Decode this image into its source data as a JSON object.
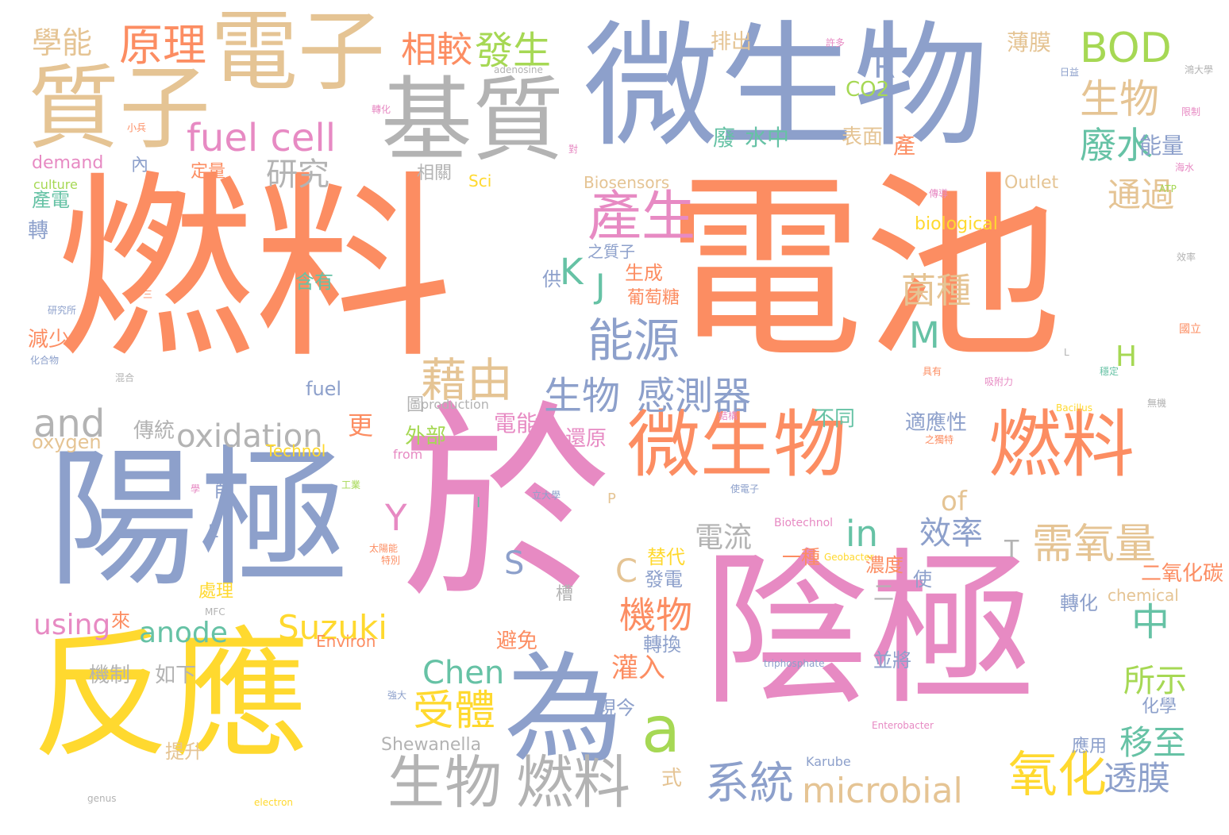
{
  "words": [
    {
      "text": "燃料",
      "color": "#fc8d62"
    },
    {
      "text": "電池",
      "color": "#fc8d62"
    },
    {
      "text": "微生物",
      "color": "#8da0cb"
    },
    {
      "text": "於",
      "color": "#e78ac3"
    },
    {
      "text": "陰極",
      "color": "#e78ac3"
    },
    {
      "text": "陽極",
      "color": "#8da0cb"
    },
    {
      "text": "反應",
      "color": "#ffd92f"
    },
    {
      "text": "電子",
      "color": "#e5c494"
    },
    {
      "text": "質子",
      "color": "#e5c494"
    },
    {
      "text": "基質",
      "color": "#b3b3b3"
    },
    {
      "text": "微生物",
      "color": "#fc8d62"
    },
    {
      "text": "燃料",
      "color": "#fc8d62"
    },
    {
      "text": "為",
      "color": "#8da0cb"
    },
    {
      "text": "生物",
      "color": "#b3b3b3"
    },
    {
      "text": "燃料",
      "color": "#b3b3b3"
    },
    {
      "text": "fuel cell",
      "color": "#e78ac3"
    },
    {
      "text": "產生",
      "color": "#e78ac3"
    },
    {
      "text": "BOD",
      "color": "#a6d854"
    },
    {
      "text": "需氧量",
      "color": "#e5c494"
    },
    {
      "text": "microbial",
      "color": "#e5c494"
    },
    {
      "text": "a",
      "color": "#a6d854"
    },
    {
      "text": "and",
      "color": "#b3b3b3"
    },
    {
      "text": "oxidation",
      "color": "#b3b3b3"
    },
    {
      "text": "能源",
      "color": "#8da0cb"
    },
    {
      "text": "藉由",
      "color": "#e5c494"
    },
    {
      "text": "生物",
      "color": "#8da0cb"
    },
    {
      "text": "感測器",
      "color": "#8da0cb"
    },
    {
      "text": "原理",
      "color": "#fc8d62"
    },
    {
      "text": "學能",
      "color": "#e5c494"
    },
    {
      "text": "相較",
      "color": "#fc8d62"
    },
    {
      "text": "發生",
      "color": "#a6d854"
    },
    {
      "text": "生物",
      "color": "#e5c494"
    },
    {
      "text": "廢水",
      "color": "#66c2a5"
    },
    {
      "text": "研究",
      "color": "#b3b3b3"
    },
    {
      "text": "in",
      "color": "#66c2a5"
    },
    {
      "text": "中",
      "color": "#66c2a5"
    },
    {
      "text": "氧化",
      "color": "#ffd92f"
    },
    {
      "text": "系統",
      "color": "#8da0cb"
    },
    {
      "text": "受體",
      "color": "#ffd92f"
    },
    {
      "text": "Suzuki",
      "color": "#ffd92f"
    },
    {
      "text": "anode",
      "color": "#66c2a5"
    },
    {
      "text": "using",
      "color": "#e78ac3"
    },
    {
      "text": "Chen",
      "color": "#66c2a5"
    },
    {
      "text": "機物",
      "color": "#fc8d62"
    },
    {
      "text": "菌種",
      "color": "#e5c494"
    },
    {
      "text": "通過",
      "color": "#e5c494"
    },
    {
      "text": "電流",
      "color": "#b3b3b3"
    },
    {
      "text": "效率",
      "color": "#8da0cb"
    },
    {
      "text": "M",
      "color": "#66c2a5"
    },
    {
      "text": "K",
      "color": "#66c2a5"
    },
    {
      "text": "J",
      "color": "#66c2a5"
    },
    {
      "text": "R",
      "color": "#8da0cb"
    },
    {
      "text": "Y",
      "color": "#e78ac3"
    },
    {
      "text": "S",
      "color": "#8da0cb"
    },
    {
      "text": "C",
      "color": "#e5c494"
    },
    {
      "text": "H",
      "color": "#a6d854"
    },
    {
      "text": "T",
      "color": "#b3b3b3"
    },
    {
      "text": "of",
      "color": "#e5c494"
    },
    {
      "text": "更",
      "color": "#fc8d62"
    },
    {
      "text": "移至",
      "color": "#66c2a5"
    },
    {
      "text": "透膜",
      "color": "#8da0cb"
    },
    {
      "text": "所示",
      "color": "#a6d854"
    },
    {
      "text": "灌入",
      "color": "#fc8d62"
    },
    {
      "text": "水中",
      "color": "#66c2a5"
    },
    {
      "text": "廢",
      "color": "#66c2a5"
    },
    {
      "text": "表面",
      "color": "#e5c494"
    },
    {
      "text": "產",
      "color": "#fc8d62"
    },
    {
      "text": "能量",
      "color": "#8da0cb"
    },
    {
      "text": "薄膜",
      "color": "#e5c494"
    },
    {
      "text": "排出",
      "color": "#e5c494"
    },
    {
      "text": "CO2",
      "color": "#a6d854"
    },
    {
      "text": "fuel",
      "color": "#8da0cb"
    },
    {
      "text": "oxygen",
      "color": "#e5c494"
    },
    {
      "text": "傳統",
      "color": "#b3b3b3"
    },
    {
      "text": "外部",
      "color": "#a6d854"
    },
    {
      "text": "電能",
      "color": "#e78ac3"
    },
    {
      "text": "還原",
      "color": "#e78ac3"
    },
    {
      "text": "不同",
      "color": "#66c2a5"
    },
    {
      "text": "適應性",
      "color": "#8da0cb"
    },
    {
      "text": "二氧化碳",
      "color": "#fc8d62"
    },
    {
      "text": "轉化",
      "color": "#8da0cb"
    },
    {
      "text": "chemical",
      "color": "#e5c494"
    },
    {
      "text": "化學",
      "color": "#8da0cb"
    },
    {
      "text": "應用",
      "color": "#8da0cb"
    },
    {
      "text": "Shewanella",
      "color": "#b3b3b3"
    },
    {
      "text": "Karube",
      "color": "#8da0cb"
    },
    {
      "text": "式",
      "color": "#e5c494"
    },
    {
      "text": "現今",
      "color": "#8da0cb"
    },
    {
      "text": "轉換",
      "color": "#8da0cb"
    },
    {
      "text": "並將",
      "color": "#8da0cb"
    },
    {
      "text": "濃度",
      "color": "#fc8d62"
    },
    {
      "text": "使",
      "color": "#8da0cb"
    },
    {
      "text": "一種",
      "color": "#fc8d62"
    },
    {
      "text": "發電",
      "color": "#8da0cb"
    },
    {
      "text": "替代",
      "color": "#ffd92f"
    },
    {
      "text": "處理",
      "color": "#ffd92f"
    },
    {
      "text": "槽",
      "color": "#b3b3b3"
    },
    {
      "text": "避免",
      "color": "#fc8d62"
    },
    {
      "text": "Environ",
      "color": "#fc8d62"
    },
    {
      "text": "Technol",
      "color": "#ffd92f"
    },
    {
      "text": "機制",
      "color": "#b3b3b3"
    },
    {
      "text": "如下",
      "color": "#b3b3b3"
    },
    {
      "text": "提升",
      "color": "#e5c494"
    },
    {
      "text": "減少",
      "color": "#fc8d62"
    },
    {
      "text": "含有",
      "color": "#66c2a5"
    },
    {
      "text": "供",
      "color": "#8da0cb"
    },
    {
      "text": "生成",
      "color": "#fc8d62"
    },
    {
      "text": "葡萄糖",
      "color": "#fc8d62"
    },
    {
      "text": "之質子",
      "color": "#8da0cb"
    },
    {
      "text": "biological",
      "color": "#ffd92f"
    },
    {
      "text": "Outlet",
      "color": "#e5c494"
    },
    {
      "text": "Biosensors",
      "color": "#e5c494"
    },
    {
      "text": "Sci",
      "color": "#ffd92f"
    },
    {
      "text": "相關",
      "color": "#b3b3b3"
    },
    {
      "text": "定量",
      "color": "#fc8d62"
    },
    {
      "text": "內",
      "color": "#8da0cb"
    },
    {
      "text": "demand",
      "color": "#e78ac3"
    },
    {
      "text": "culture",
      "color": "#a6d854"
    },
    {
      "text": "產電",
      "color": "#66c2a5"
    },
    {
      "text": "轉",
      "color": "#8da0cb"
    },
    {
      "text": "來",
      "color": "#fc8d62"
    },
    {
      "text": "削",
      "color": "#8da0cb"
    },
    {
      "text": "圖",
      "color": "#b3b3b3"
    },
    {
      "text": "二",
      "color": "#b3b3b3"
    },
    {
      "text": "production",
      "color": "#b3b3b3"
    },
    {
      "text": "from",
      "color": "#e78ac3"
    },
    {
      "text": "Biotechnol",
      "color": "#e78ac3"
    },
    {
      "text": "E",
      "color": "#8da0cb"
    },
    {
      "text": "P",
      "color": "#e5c494"
    },
    {
      "text": "I",
      "color": "#66c2a5"
    },
    {
      "text": "triphosphate",
      "color": "#8da0cb"
    },
    {
      "text": "Enterobacter",
      "color": "#e78ac3"
    },
    {
      "text": "electron",
      "color": "#ffd92f"
    },
    {
      "text": "genus",
      "color": "#b3b3b3"
    },
    {
      "text": "Geobacter",
      "color": "#ffd92f"
    },
    {
      "text": "Bacillus",
      "color": "#ffd92f"
    },
    {
      "text": "adenosine",
      "color": "#b3b3b3"
    },
    {
      "text": "ATP",
      "color": "#a6d854"
    },
    {
      "text": "MFC",
      "color": "#b3b3b3"
    },
    {
      "text": "L",
      "color": "#b3b3b3"
    },
    {
      "text": "許多",
      "color": "#e78ac3"
    },
    {
      "text": "日益",
      "color": "#8da0cb"
    },
    {
      "text": "鴻大學",
      "color": "#b3b3b3"
    },
    {
      "text": "限制",
      "color": "#e78ac3"
    },
    {
      "text": "海水",
      "color": "#e78ac3"
    },
    {
      "text": "效率",
      "color": "#b3b3b3"
    },
    {
      "text": "國立",
      "color": "#fc8d62"
    },
    {
      "text": "無機",
      "color": "#b3b3b3"
    },
    {
      "text": "強大",
      "color": "#8da0cb"
    },
    {
      "text": "太陽能",
      "color": "#fc8d62"
    },
    {
      "text": "特別",
      "color": "#fc8d62"
    },
    {
      "text": "工業",
      "color": "#a6d854"
    },
    {
      "text": "立大學",
      "color": "#8da0cb"
    },
    {
      "text": "學",
      "color": "#e78ac3"
    },
    {
      "text": "小兵",
      "color": "#fc8d62"
    },
    {
      "text": "轉化",
      "color": "#e78ac3"
    },
    {
      "text": "對",
      "color": "#e78ac3"
    },
    {
      "text": "研究所",
      "color": "#8da0cb"
    },
    {
      "text": "化合物",
      "color": "#8da0cb"
    },
    {
      "text": "混合",
      "color": "#b3b3b3"
    },
    {
      "text": "三",
      "color": "#fc8d62"
    },
    {
      "text": "具有",
      "color": "#fc8d62"
    },
    {
      "text": "穩定",
      "color": "#66c2a5"
    },
    {
      "text": "吸附力",
      "color": "#e78ac3"
    },
    {
      "text": "結構",
      "color": "#e78ac3"
    },
    {
      "text": "之獨特",
      "color": "#fc8d62"
    },
    {
      "text": "使電子",
      "color": "#8da0cb"
    },
    {
      "text": "傳導",
      "color": "#e78ac3"
    }
  ]
}
